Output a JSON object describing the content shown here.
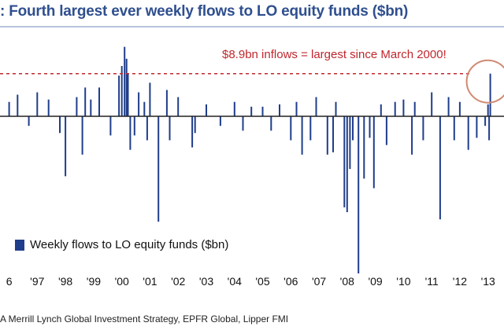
{
  "chart_data": {
    "type": "bar",
    "title": ": Fourth largest ever weekly flows to LO equity funds ($bn)",
    "annotation": "$8.9bn inflows = largest since March 2000!",
    "legend": "Weekly flows to LO equity funds ($bn)",
    "legend_position": "bottom-left",
    "source": "A Merrill Lynch Global Investment Strategy, EPFR Global, Lipper FMI",
    "x_tick_labels": [
      "6",
      "'97",
      "'98",
      "'99",
      "'00",
      "'01",
      "'02",
      "'03",
      "'04",
      "'05",
      "'06",
      "'07",
      "'08",
      "'09",
      "'10",
      "'11",
      "'12",
      "'13"
    ],
    "x_tick_years": [
      1996,
      1997,
      1998,
      1999,
      2000,
      2001,
      2002,
      2003,
      2004,
      2005,
      2006,
      2007,
      2008,
      2009,
      2010,
      2011,
      2012,
      2013
    ],
    "x_range": [
      1995.9,
      2013.12
    ],
    "ylim": [
      -33,
      15
    ],
    "reference_line": 8.9,
    "grid": false,
    "series": [
      {
        "name": "Weekly flows to LO equity funds ($bn)",
        "x": [
          1996.0,
          1996.3,
          1996.7,
          1997.0,
          1997.4,
          1997.8,
          1998.0,
          1998.4,
          1998.6,
          1998.7,
          1998.9,
          1999.2,
          1999.6,
          1999.9,
          2000.0,
          2000.1,
          2000.17,
          2000.22,
          2000.3,
          2000.45,
          2000.6,
          2000.8,
          2000.9,
          2001.0,
          2001.3,
          2001.6,
          2001.7,
          2002.0,
          2002.5,
          2002.6,
          2003.0,
          2003.5,
          2004.0,
          2004.3,
          2004.6,
          2005.0,
          2005.3,
          2005.6,
          2006.0,
          2006.2,
          2006.4,
          2006.7,
          2006.9,
          2007.3,
          2007.5,
          2007.6,
          2007.9,
          2008.0,
          2008.1,
          2008.2,
          2008.4,
          2008.6,
          2008.8,
          2008.95,
          2009.2,
          2009.4,
          2009.7,
          2010.0,
          2010.3,
          2010.4,
          2010.7,
          2011.0,
          2011.3,
          2011.6,
          2011.8,
          2012.0,
          2012.3,
          2012.6,
          2012.9,
          2013.0,
          2013.04,
          2013.08
        ],
        "values": [
          3.0,
          4.5,
          -2.0,
          5.0,
          3.5,
          -3.5,
          -12.5,
          4.0,
          -8.0,
          6.0,
          3.5,
          6.0,
          -4.0,
          8.5,
          10.5,
          14.5,
          12.0,
          9.0,
          -7.0,
          -4.0,
          5.0,
          3.0,
          -5.0,
          7.0,
          -22.0,
          5.5,
          -5.0,
          4.0,
          -6.5,
          -3.5,
          2.5,
          -2.0,
          3.0,
          -3.0,
          2.0,
          2.0,
          -3.0,
          2.5,
          -5.0,
          3.0,
          -8.0,
          -5.0,
          4.0,
          -8.0,
          -7.5,
          3.0,
          -19.0,
          -20.0,
          -11.0,
          -5.0,
          -33.0,
          -13.0,
          -4.5,
          -15.0,
          2.5,
          -6.0,
          3.0,
          3.5,
          -8.0,
          3.0,
          -5.0,
          5.0,
          -21.5,
          4.0,
          -5.0,
          3.0,
          -7.0,
          -4.5,
          -2.0,
          2.5,
          -5.0,
          8.9
        ]
      }
    ]
  },
  "colors": {
    "bars": "#1f3d8a",
    "title": "#2f4f8f",
    "reference_line": "#c0272d",
    "annotation": "#c0272d",
    "highlight_circle": "#d08a73",
    "axis": "#222222"
  }
}
